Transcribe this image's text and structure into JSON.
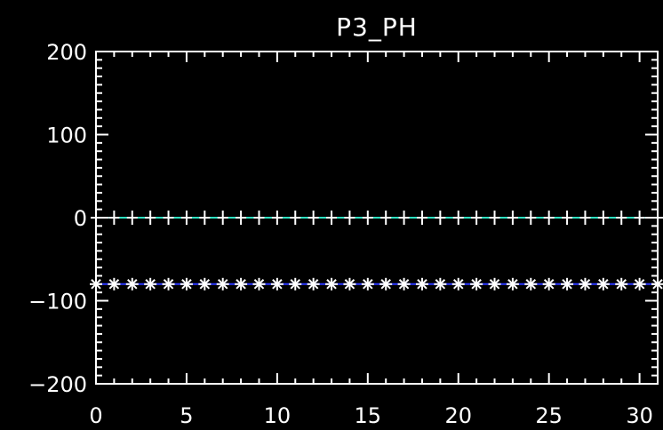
{
  "chart_data": {
    "type": "line",
    "title": "P3_PH",
    "xlabel": "",
    "ylabel": "",
    "xlim": [
      0,
      31
    ],
    "ylim": [
      -200,
      200
    ],
    "x_ticks": [
      0,
      5,
      10,
      15,
      20,
      25,
      30
    ],
    "x_tick_labels": [
      "0",
      "5",
      "10",
      "15",
      "20",
      "25",
      "30"
    ],
    "y_ticks": [
      -200,
      -100,
      0,
      100,
      200
    ],
    "y_tick_labels": [
      "−200",
      "−100",
      "0",
      "100",
      "200"
    ],
    "grid": false,
    "background_color": "#000000",
    "axis_color": "#ffffff",
    "series": [
      {
        "marker": "plus",
        "color": "#2ee0c0",
        "marker_color": "#ffffff",
        "x": [
          0,
          1,
          2,
          3,
          4,
          5,
          6,
          7,
          8,
          9,
          10,
          11,
          12,
          13,
          14,
          15,
          16,
          17,
          18,
          19,
          20,
          21,
          22,
          23,
          24,
          25,
          26,
          27,
          28,
          29,
          30,
          31
        ],
        "values": [
          0,
          0,
          0,
          0,
          0,
          0,
          0,
          0,
          0,
          0,
          0,
          0,
          0,
          0,
          0,
          0,
          0,
          0,
          0,
          0,
          0,
          0,
          0,
          0,
          0,
          0,
          0,
          0,
          0,
          0,
          0,
          0
        ]
      },
      {
        "marker": "asterisk",
        "color": "#2a36ff",
        "marker_color": "#ffffff",
        "x": [
          0,
          1,
          2,
          3,
          4,
          5,
          6,
          7,
          8,
          9,
          10,
          11,
          12,
          13,
          14,
          15,
          16,
          17,
          18,
          19,
          20,
          21,
          22,
          23,
          24,
          25,
          26,
          27,
          28,
          29,
          30,
          31
        ],
        "values": [
          -80,
          -80,
          -80,
          -80,
          -80,
          -80,
          -80,
          -80,
          -80,
          -80,
          -80,
          -80,
          -80,
          -80,
          -80,
          -80,
          -80,
          -80,
          -80,
          -80,
          -80,
          -80,
          -80,
          -80,
          -80,
          -80,
          -80,
          -80,
          -80,
          -80,
          -80,
          -80
        ]
      }
    ]
  }
}
